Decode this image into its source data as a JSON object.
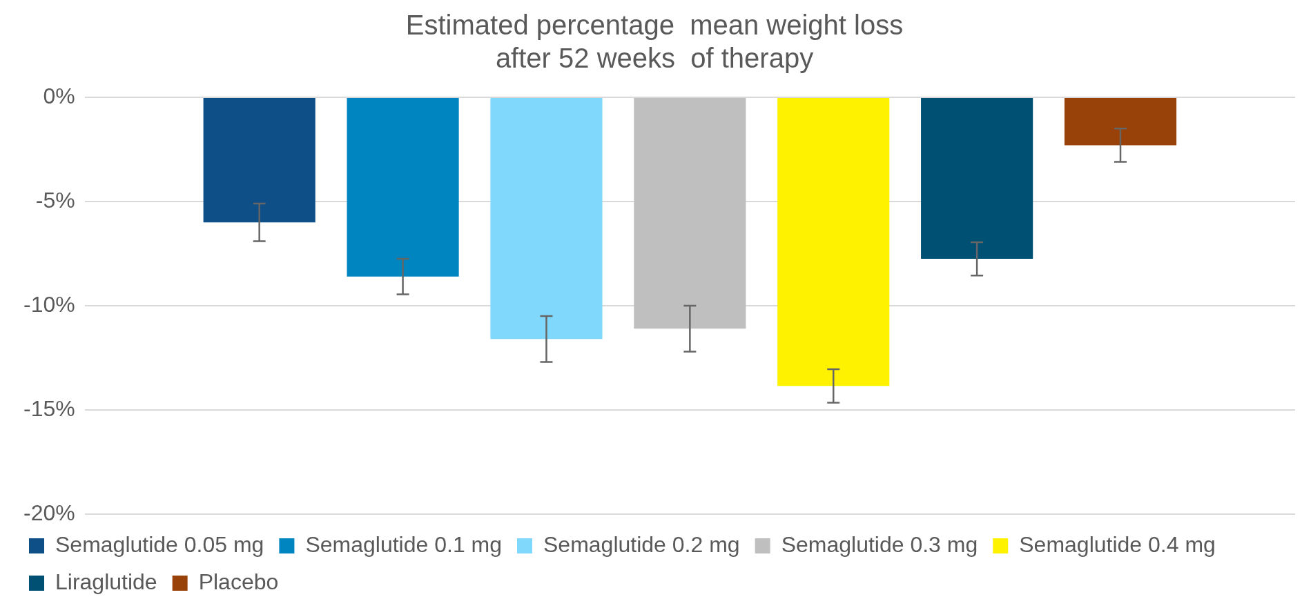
{
  "chart_data": {
    "type": "bar",
    "title": "Estimated percentage  mean weight loss\nafter 52 weeks  of therapy",
    "categories": [
      null
    ],
    "series": [
      {
        "name": "Semaglutide 0.05 mg",
        "color": "#0d4f86",
        "values": [
          -6.0
        ],
        "errors": [
          0.9
        ]
      },
      {
        "name": "Semaglutide 0.1 mg",
        "color": "#0085c0",
        "values": [
          -8.6
        ],
        "errors": [
          0.85
        ]
      },
      {
        "name": "Semaglutide 0.2 mg",
        "color": "#80d8fc",
        "values": [
          -11.6
        ],
        "errors": [
          1.1
        ]
      },
      {
        "name": "Semaglutide 0.3 mg",
        "color": "#bfbfbf",
        "values": [
          -11.1
        ],
        "errors": [
          1.1
        ]
      },
      {
        "name": "Semaglutide 0.4 mg",
        "color": "#fff200",
        "values": [
          -13.85
        ],
        "errors": [
          0.8
        ]
      },
      {
        "name": "Liraglutide",
        "color": "#005073",
        "values": [
          -7.75
        ],
        "errors": [
          0.8
        ]
      },
      {
        "name": "Placebo",
        "color": "#984209",
        "values": [
          -2.3
        ],
        "errors": [
          0.8
        ]
      }
    ],
    "ylim": [
      -20,
      0
    ],
    "yticks": [
      {
        "value": -20,
        "label": "-20%"
      },
      {
        "value": -15,
        "label": "-15%"
      },
      {
        "value": -10,
        "label": "-10%"
      },
      {
        "value": -5,
        "label": "-5%"
      },
      {
        "value": 0,
        "label": "0%"
      }
    ],
    "grid": "y",
    "legend": "bottom",
    "tick_labels": "y"
  }
}
